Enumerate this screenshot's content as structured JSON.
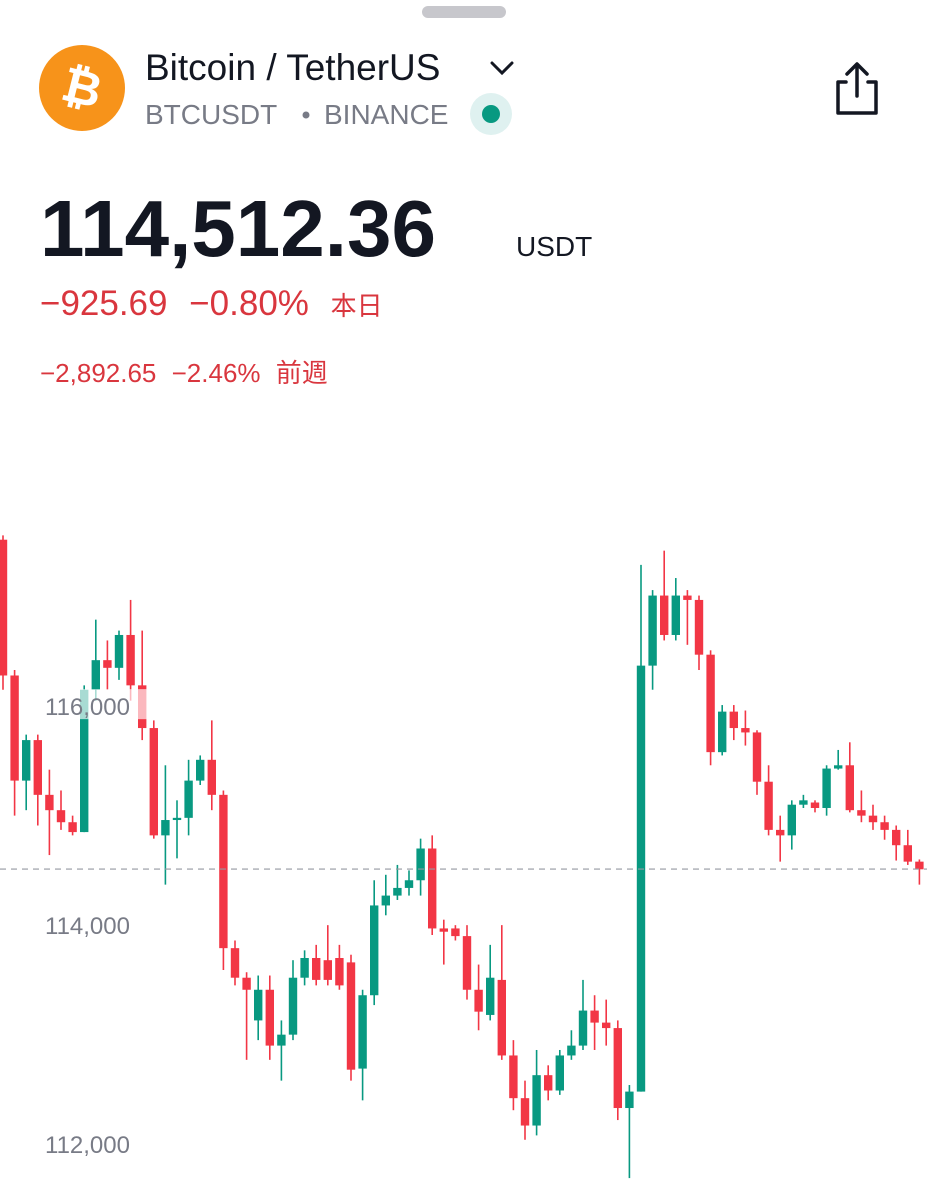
{
  "header": {
    "title": "Bitcoin / TetherUS",
    "symbol": "BTCUSDT",
    "exchange": "BINANCE"
  },
  "quote": {
    "price": {
      "value": 114512.36,
      "label": "114,512.36"
    },
    "currency": "USDT",
    "day_change": "−925.69",
    "day_change_pct": "−0.80%",
    "day_label": "本日",
    "week_change": "−2,892.65",
    "week_change_pct": "−2.46%",
    "week_label": "前週"
  },
  "chart_data": {
    "type": "candlestick",
    "up_color": "#089981",
    "down_color": "#f23645",
    "ylim": [
      111490,
      117700
    ],
    "yticks": [
      {
        "value": 112000,
        "label": "112,000"
      },
      {
        "value": 114000,
        "label": "114,000"
      },
      {
        "value": 116000,
        "label": "116,000"
      }
    ],
    "open": [
      117520,
      116280,
      115320,
      115690,
      115190,
      115050,
      114940,
      114850,
      116150,
      116420,
      116350,
      116650,
      116190,
      115800,
      114820,
      114960,
      114980,
      115320,
      115510,
      115190,
      113790,
      113520,
      113130,
      113410,
      112900,
      113000,
      113520,
      113700,
      113680,
      113700,
      113660,
      112690,
      113360,
      114180,
      114270,
      114340,
      114410,
      114700,
      113970,
      113970,
      113900,
      113410,
      113180,
      113500,
      112810,
      112420,
      112170,
      112630,
      112490,
      112810,
      112900,
      113220,
      113110,
      113060,
      112330,
      112480,
      116370,
      117010,
      116650,
      117010,
      116970,
      116470,
      115580,
      115950,
      115800,
      115760,
      115310,
      114870,
      114820,
      115100,
      115120,
      115070,
      115430,
      115460,
      115050,
      115000,
      114940,
      114870,
      114730,
      114580
    ],
    "high": [
      117560,
      116330,
      115740,
      115740,
      115420,
      115230,
      115000,
      116190,
      116790,
      116600,
      116690,
      116970,
      116690,
      115870,
      115460,
      115140,
      115510,
      115550,
      115870,
      115230,
      113860,
      113570,
      113540,
      113540,
      113130,
      113680,
      113770,
      113820,
      114000,
      113820,
      113730,
      113410,
      114410,
      114460,
      114550,
      114500,
      114790,
      114820,
      114050,
      114000,
      114000,
      113640,
      113820,
      114000,
      112950,
      112580,
      112860,
      112720,
      112860,
      113040,
      113500,
      113360,
      113320,
      113130,
      112540,
      117290,
      117060,
      117420,
      117170,
      117060,
      117010,
      116510,
      116010,
      116010,
      115960,
      115780,
      115460,
      115000,
      115140,
      115190,
      115140,
      115460,
      115600,
      115670,
      115230,
      115100,
      115000,
      114910,
      114870,
      114600
    ],
    "low": [
      116150,
      115000,
      115050,
      114910,
      114640,
      114870,
      114820,
      114850,
      116050,
      116150,
      116240,
      116050,
      115690,
      114790,
      114370,
      114610,
      114820,
      115280,
      115050,
      113590,
      113450,
      112770,
      112950,
      112770,
      112580,
      112950,
      113450,
      113450,
      113450,
      113410,
      112580,
      112400,
      113270,
      114090,
      114230,
      114270,
      114270,
      113910,
      113640,
      113860,
      113320,
      113040,
      113130,
      112770,
      112310,
      112040,
      112080,
      112400,
      112450,
      112770,
      112860,
      112860,
      112900,
      112220,
      111690,
      112480,
      116150,
      116600,
      116600,
      116560,
      116330,
      115460,
      115550,
      115690,
      115640,
      115190,
      114820,
      114580,
      114690,
      115070,
      115030,
      115000,
      115420,
      115030,
      114940,
      114870,
      114780,
      114590,
      114550,
      114370
    ],
    "close": [
      116280,
      115320,
      115690,
      115190,
      115050,
      114940,
      114850,
      116150,
      116420,
      116350,
      116650,
      116190,
      115800,
      114820,
      114960,
      114980,
      115320,
      115510,
      115190,
      113790,
      113520,
      113410,
      113410,
      112900,
      113000,
      113520,
      113700,
      113500,
      113500,
      113450,
      112680,
      113360,
      114180,
      114270,
      114340,
      114410,
      114700,
      113970,
      113940,
      113900,
      113410,
      113210,
      113520,
      112810,
      112420,
      112170,
      112630,
      112490,
      112810,
      112900,
      113220,
      113110,
      113060,
      112330,
      112480,
      116370,
      117010,
      116650,
      117010,
      116970,
      116470,
      115580,
      115950,
      115800,
      115760,
      115310,
      114870,
      114820,
      115100,
      115140,
      115070,
      115430,
      115460,
      115050,
      115000,
      114940,
      114870,
      114730,
      114580,
      114510
    ]
  }
}
